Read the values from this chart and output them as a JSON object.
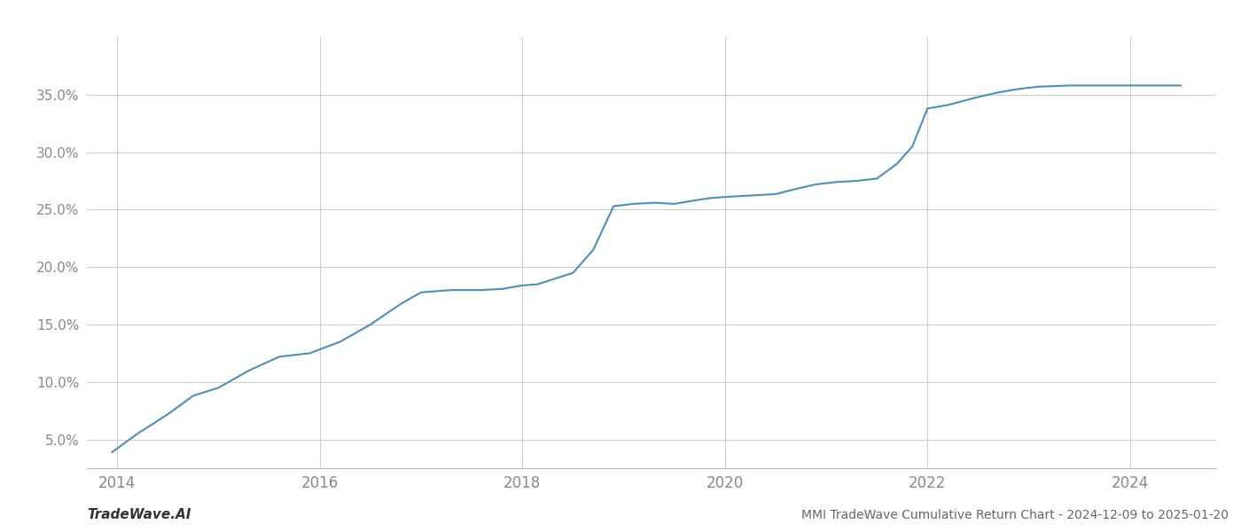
{
  "title": "MMI TradeWave Cumulative Return Chart - 2024-12-09 to 2025-01-20",
  "watermark": "TradeWave.AI",
  "line_color": "#4a90b8",
  "background_color": "#ffffff",
  "grid_color": "#cccccc",
  "x_years": [
    2014,
    2016,
    2018,
    2020,
    2022,
    2024
  ],
  "yticks": [
    5.0,
    10.0,
    15.0,
    20.0,
    25.0,
    30.0,
    35.0
  ],
  "xlim": [
    2013.7,
    2024.85
  ],
  "ylim": [
    2.5,
    40.0
  ],
  "data_points": [
    [
      2013.95,
      3.9
    ],
    [
      2014.2,
      5.5
    ],
    [
      2014.5,
      7.2
    ],
    [
      2014.75,
      8.8
    ],
    [
      2015.0,
      9.5
    ],
    [
      2015.3,
      11.0
    ],
    [
      2015.6,
      12.2
    ],
    [
      2015.9,
      12.5
    ],
    [
      2016.2,
      13.5
    ],
    [
      2016.5,
      15.0
    ],
    [
      2016.8,
      16.8
    ],
    [
      2017.0,
      17.8
    ],
    [
      2017.3,
      18.0
    ],
    [
      2017.6,
      18.0
    ],
    [
      2017.8,
      18.1
    ],
    [
      2018.0,
      18.4
    ],
    [
      2018.15,
      18.5
    ],
    [
      2018.5,
      19.5
    ],
    [
      2018.7,
      21.5
    ],
    [
      2018.9,
      25.3
    ],
    [
      2019.1,
      25.5
    ],
    [
      2019.3,
      25.6
    ],
    [
      2019.5,
      25.5
    ],
    [
      2019.7,
      25.8
    ],
    [
      2019.85,
      26.0
    ],
    [
      2020.0,
      26.1
    ],
    [
      2020.2,
      26.2
    ],
    [
      2020.5,
      26.35
    ],
    [
      2020.7,
      26.8
    ],
    [
      2020.9,
      27.2
    ],
    [
      2021.1,
      27.4
    ],
    [
      2021.3,
      27.5
    ],
    [
      2021.5,
      27.7
    ],
    [
      2021.7,
      29.0
    ],
    [
      2021.85,
      30.5
    ],
    [
      2022.0,
      33.8
    ],
    [
      2022.2,
      34.1
    ],
    [
      2022.5,
      34.8
    ],
    [
      2022.7,
      35.2
    ],
    [
      2022.9,
      35.5
    ],
    [
      2023.1,
      35.7
    ],
    [
      2023.4,
      35.8
    ],
    [
      2023.7,
      35.8
    ],
    [
      2024.0,
      35.8
    ],
    [
      2024.5,
      35.8
    ]
  ]
}
